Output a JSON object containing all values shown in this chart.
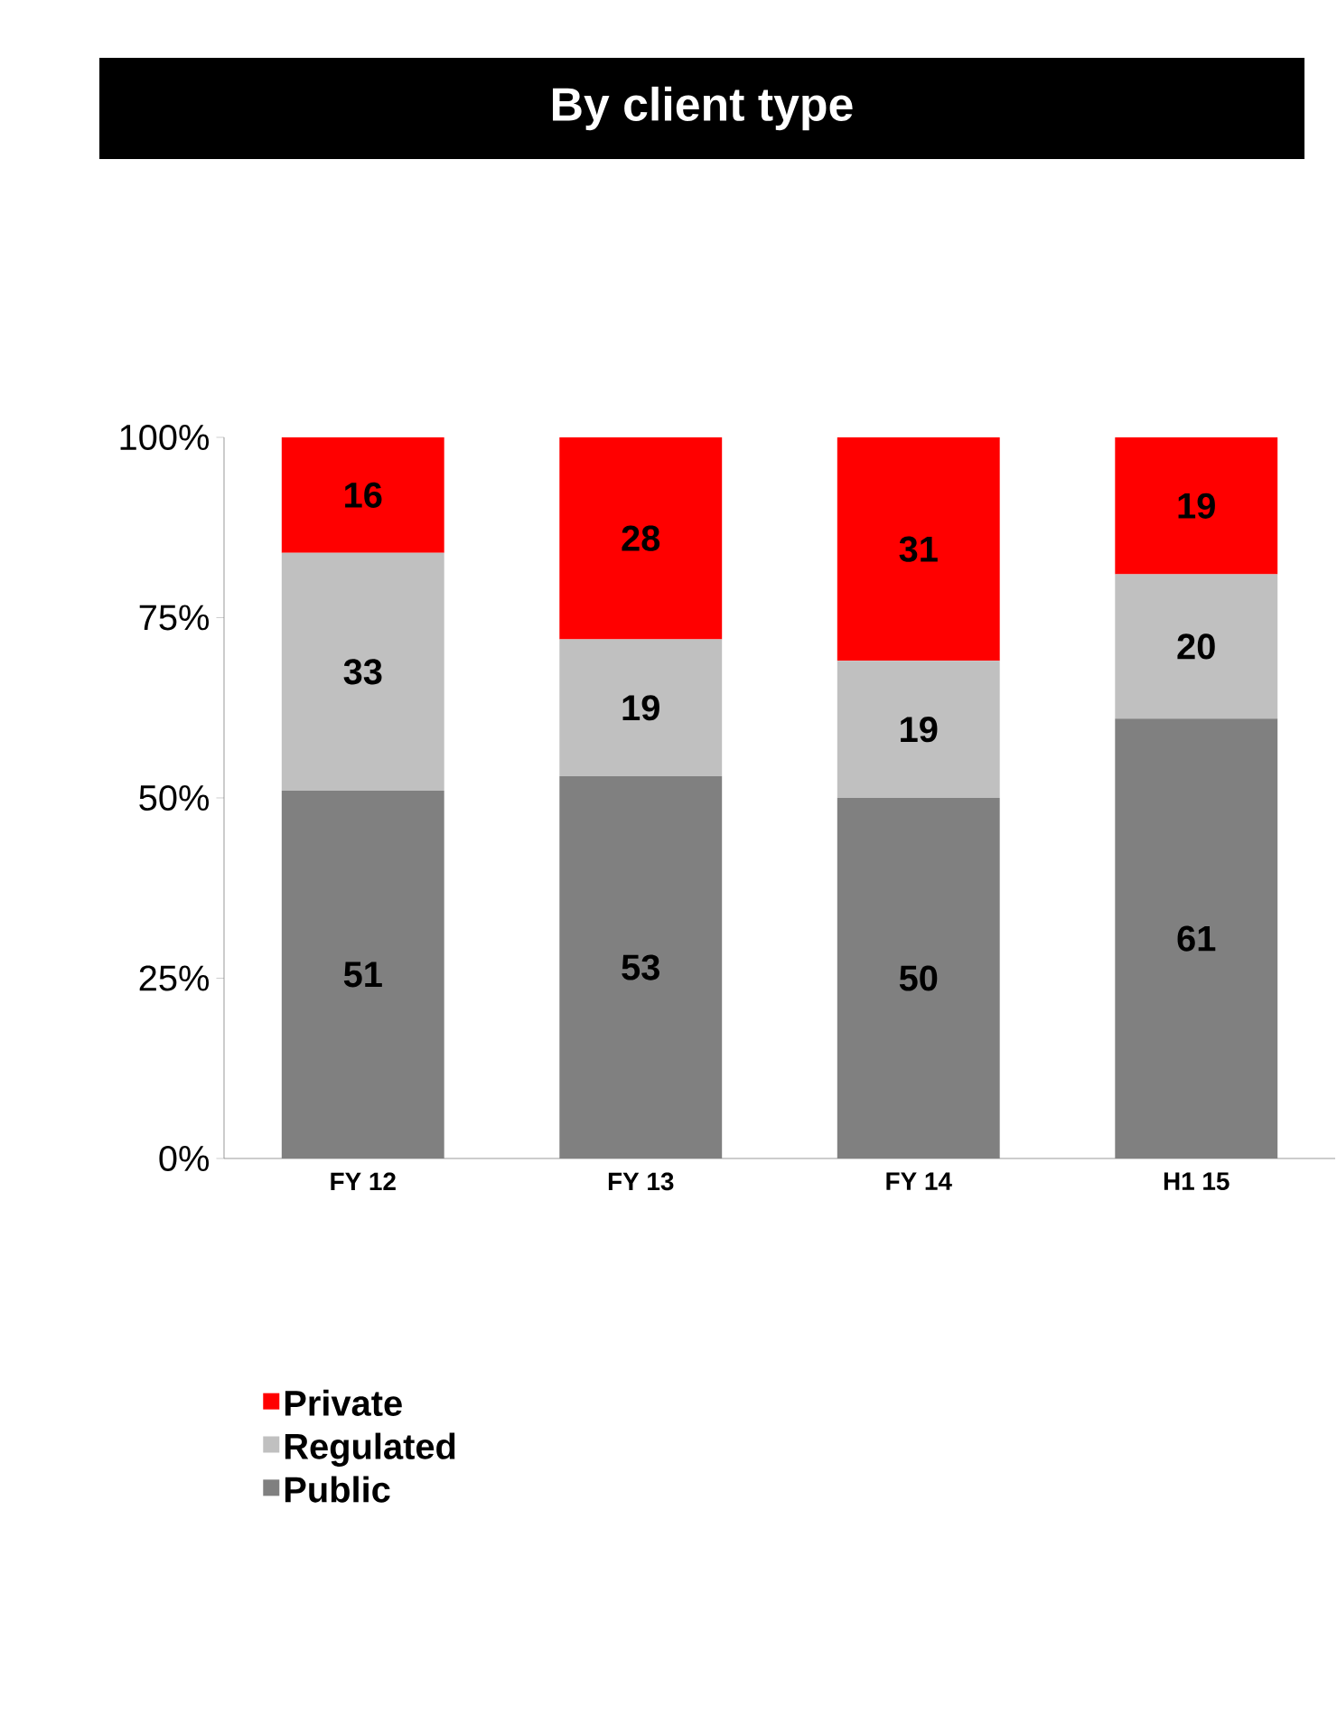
{
  "chart_data": {
    "type": "bar",
    "title": "By client type",
    "stacked": true,
    "data_labels": true,
    "legend": "bottom left",
    "categories": [
      "FY 12",
      "FY 13",
      "FY 14",
      "H1 15"
    ],
    "series": [
      {
        "name": "Public",
        "color": "#808080",
        "values": [
          51,
          53,
          50,
          61
        ]
      },
      {
        "name": "Regulated",
        "color": "#c0c0c0",
        "values": [
          33,
          19,
          19,
          20
        ]
      },
      {
        "name": "Private",
        "color": "#ff0000",
        "values": [
          16,
          28,
          31,
          19
        ]
      }
    ],
    "ylim": [
      0,
      100
    ],
    "yticks": [
      {
        "value": 0,
        "label": "0%"
      },
      {
        "value": 25,
        "label": "25%"
      },
      {
        "value": 50,
        "label": "50%"
      },
      {
        "value": 75,
        "label": "75%"
      },
      {
        "value": 100,
        "label": "100%"
      }
    ]
  }
}
